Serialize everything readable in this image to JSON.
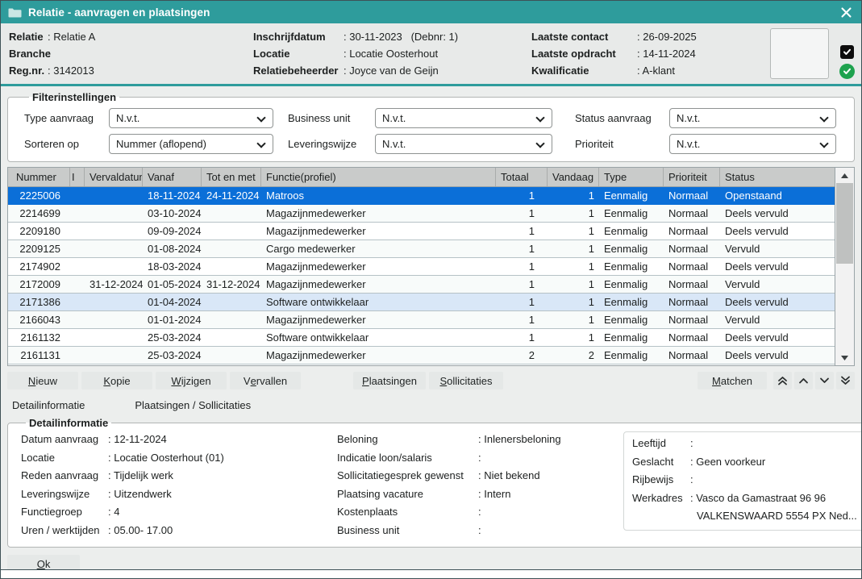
{
  "colors": {
    "titlebar": "#2E9C9C",
    "selected_row": "#0B6FD8",
    "highlight_row": "#D9E7F7",
    "table_header_bg": "#C9CBCA",
    "black_badge": "#0c0c0c",
    "green_badge": "#1EA24E"
  },
  "icons": {
    "titlebar": "folder-icon",
    "close": "close-icon",
    "relation_checkbox": "checkbox-checked-icon",
    "relation_status": "green-check-icon",
    "scrollbar": [
      "arrow-up-icon",
      "arrow-down-icon"
    ],
    "nav": [
      "double-chevron-up-icon",
      "chevron-up-icon",
      "chevron-down-icon",
      "double-chevron-down-icon"
    ],
    "dropdown": "chevron-down-icon"
  },
  "window": {
    "title": "Relatie - aanvragen en plaatsingen"
  },
  "header": {
    "col1": [
      {
        "label": "Relatie",
        "value": ": Relatie A"
      },
      {
        "label": "Branche",
        "value": ":"
      },
      {
        "label": "Reg.nr.",
        "value": ": 3142013"
      }
    ],
    "col2": [
      {
        "label": "Inschrijfdatum",
        "value": ": 30-11-2023   (Debnr: 1)"
      },
      {
        "label": "Locatie",
        "value": ": Locatie Oosterhout"
      },
      {
        "label": "Relatiebeheerder",
        "value": ": Joyce van de Geijn"
      }
    ],
    "col3": [
      {
        "label": "Laatste contact",
        "value": ": 26-09-2025"
      },
      {
        "label": "Laatste opdracht",
        "value": ": 14-11-2024"
      },
      {
        "label": "Kwalificatie",
        "value": ": A-klant"
      }
    ]
  },
  "filters": {
    "legend": "Filterinstellingen",
    "fields": [
      {
        "label": "Type aanvraag",
        "value": "N.v.t."
      },
      {
        "label": "Business unit",
        "value": "N.v.t."
      },
      {
        "label": "Status aanvraag",
        "value": "N.v.t."
      },
      {
        "label": "Sorteren op",
        "value": "Nummer (aflopend)"
      },
      {
        "label": "Leveringswijze",
        "value": "N.v.t."
      },
      {
        "label": "Prioriteit",
        "value": "N.v.t."
      }
    ]
  },
  "table": {
    "columns": [
      "Nummer",
      "I",
      "Vervaldatum",
      "Vanaf",
      "Tot en met",
      "Functie(profiel)",
      "Totaal",
      "Vandaag",
      "Type",
      "Prioriteit",
      "Status"
    ],
    "rows": [
      {
        "state": "selected",
        "cells": [
          "2225006",
          "",
          "",
          "18-11-2024",
          "24-11-2024",
          "Matroos",
          "1",
          "1",
          "Eenmalig",
          "Normaal",
          "Openstaand"
        ]
      },
      {
        "state": "",
        "cells": [
          "2214699",
          "",
          "",
          "03-10-2024",
          "",
          "Magazijnmedewerker",
          "1",
          "1",
          "Eenmalig",
          "Normaal",
          "Deels vervuld"
        ]
      },
      {
        "state": "",
        "cells": [
          "2209180",
          "",
          "",
          "09-09-2024",
          "",
          "Magazijnmedewerker",
          "1",
          "1",
          "Eenmalig",
          "Normaal",
          "Deels vervuld"
        ]
      },
      {
        "state": "",
        "cells": [
          "2209125",
          "",
          "",
          "01-08-2024",
          "",
          "Cargo medewerker",
          "1",
          "1",
          "Eenmalig",
          "Normaal",
          "Vervuld"
        ]
      },
      {
        "state": "",
        "cells": [
          "2174902",
          "",
          "",
          "18-03-2024",
          "",
          "Magazijnmedewerker",
          "1",
          "1",
          "Eenmalig",
          "Normaal",
          "Deels vervuld"
        ]
      },
      {
        "state": "",
        "cells": [
          "2172009",
          "",
          "31-12-2024",
          "01-05-2024",
          "31-12-2024",
          "Magazijnmedewerker",
          "1",
          "1",
          "Eenmalig",
          "Normaal",
          "Vervuld"
        ]
      },
      {
        "state": "highlighted",
        "cells": [
          "2171386",
          "",
          "",
          "01-04-2024",
          "",
          "Software ontwikkelaar",
          "1",
          "1",
          "Eenmalig",
          "Normaal",
          "Deels vervuld"
        ]
      },
      {
        "state": "",
        "cells": [
          "2166043",
          "",
          "",
          "01-01-2024",
          "",
          "Magazijnmedewerker",
          "1",
          "1",
          "Eenmalig",
          "Normaal",
          "Vervuld"
        ]
      },
      {
        "state": "",
        "cells": [
          "2161132",
          "",
          "",
          "25-03-2024",
          "",
          "Software ontwikkelaar",
          "1",
          "1",
          "Eenmalig",
          "Normaal",
          "Deels vervuld"
        ]
      },
      {
        "state": "",
        "cells": [
          "2161131",
          "",
          "",
          "25-03-2024",
          "",
          "Magazijnmedewerker",
          "2",
          "2",
          "Eenmalig",
          "Normaal",
          "Deels vervuld"
        ]
      }
    ]
  },
  "buttons": {
    "nieuw": {
      "pre": "",
      "key": "N",
      "post": "ieuw"
    },
    "kopie": {
      "pre": "",
      "key": "K",
      "post": "opie"
    },
    "wijzigen": {
      "pre": "",
      "key": "W",
      "post": "ijzigen"
    },
    "vervallen": {
      "pre": "V",
      "key": "e",
      "post": "rvallen"
    },
    "plaatsingen": {
      "pre": "",
      "key": "P",
      "post": "laatsingen"
    },
    "sollicitaties": {
      "pre": "",
      "key": "S",
      "post": "ollicitaties"
    },
    "matchen": {
      "pre": "",
      "key": "M",
      "post": "atchen"
    },
    "ok": {
      "pre": "",
      "key": "O",
      "post": "k"
    }
  },
  "tabs": [
    {
      "label": "Detailinformatie"
    },
    {
      "label": "Plaatsingen / Sollicitaties"
    }
  ],
  "detail": {
    "legend": "Detailinformatie",
    "col1": [
      {
        "label": "Datum aanvraag",
        "value": ": 12-11-2024"
      },
      {
        "label": "Locatie",
        "value": ": Locatie Oosterhout (01)"
      },
      {
        "label": "Reden aanvraag",
        "value": ": Tijdelijk werk"
      },
      {
        "label": "Leveringswijze",
        "value": ": Uitzendwerk"
      },
      {
        "label": "Functiegroep",
        "value": ": 4"
      },
      {
        "label": "Uren / werktijden",
        "value": ": 05.00- 17.00"
      }
    ],
    "col2": [
      {
        "label": "Beloning",
        "value": ": Inlenersbeloning"
      },
      {
        "label": "Indicatie loon/salaris",
        "value": ":"
      },
      {
        "label": "Sollicitatiegesprek gewenst",
        "value": ": Niet bekend"
      },
      {
        "label": "Plaatsing vacature",
        "value": ": Intern"
      },
      {
        "label": "Kostenplaats",
        "value": ":"
      },
      {
        "label": "Business unit",
        "value": ":"
      }
    ],
    "col3": [
      {
        "label": "Leeftijd",
        "value": ":"
      },
      {
        "label": "Geslacht",
        "value": ": Geen voorkeur"
      },
      {
        "label": "Rijbewijs",
        "value": ":"
      },
      {
        "label": "Werkadres",
        "value": ": Vasco da Gamastraat 96 96"
      }
    ],
    "col3_continuation": "VALKENSWAARD 5554 PX Ned..."
  }
}
